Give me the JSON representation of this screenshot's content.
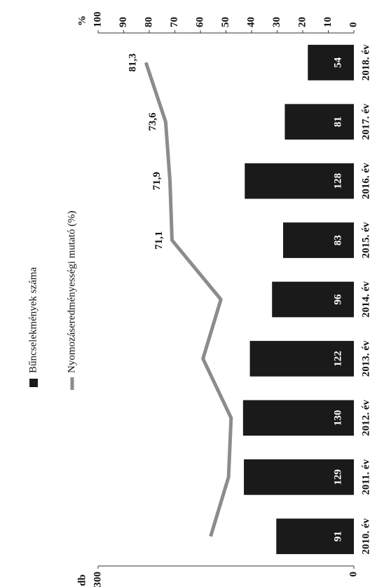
{
  "chart_data": {
    "type": "bar-line",
    "categories": [
      "2010. év",
      "2011. év",
      "2012. év",
      "2013. év",
      "2014. év",
      "2015. év",
      "2016. év",
      "2017. év",
      "2018. év"
    ],
    "series": [
      {
        "name": "Bűncselekmények száma",
        "color": "#1a1a1a",
        "type": "bar",
        "values": [
          91,
          129,
          130,
          122,
          96,
          83,
          128,
          81,
          54
        ]
      },
      {
        "name": "Nyomozáseredményességi mutató (%)",
        "color": "#8c8c8c",
        "type": "line",
        "axis": "y2",
        "values": [
          56,
          49,
          48,
          59,
          52,
          71.1,
          71.9,
          73.6,
          81.3
        ],
        "value_labels": [
          null,
          null,
          null,
          null,
          null,
          "71,1",
          "71,9",
          "73,6",
          "81,3"
        ]
      }
    ],
    "ylabel": "db",
    "y2label": "%",
    "ylim": [
      0,
      300
    ],
    "yticks": [
      0,
      300
    ],
    "y2lim": [
      0,
      100
    ],
    "y2ticks": [
      0,
      10,
      20,
      30,
      40,
      50,
      60,
      70,
      80,
      90,
      100
    ],
    "legend": "top"
  }
}
